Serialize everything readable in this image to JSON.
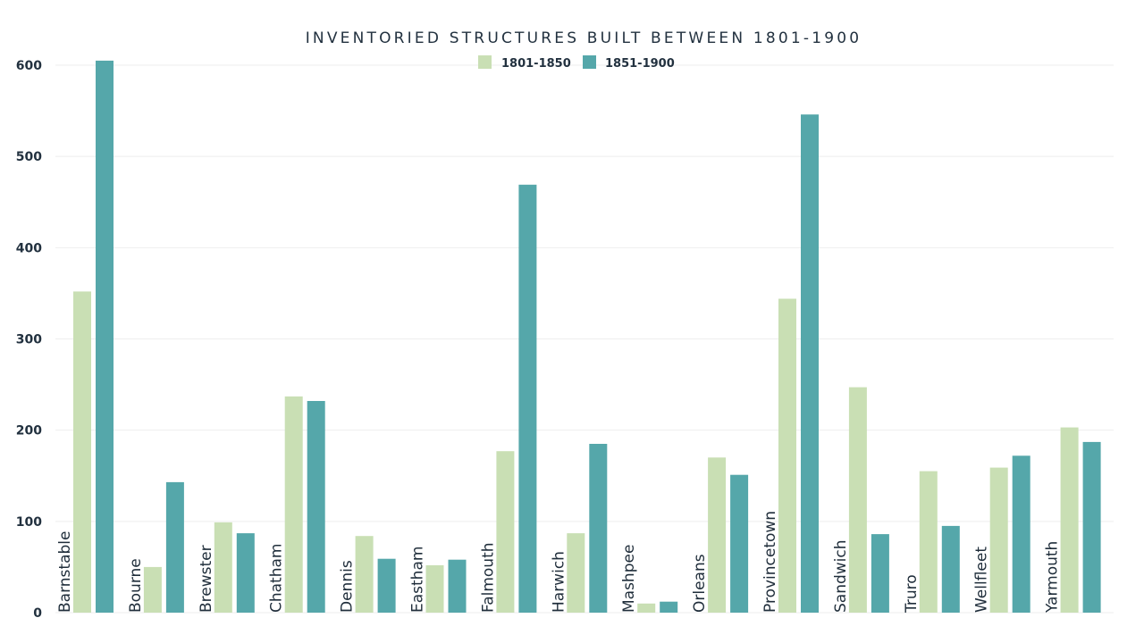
{
  "chart_data": {
    "type": "bar",
    "title": "INVENTORIED STRUCTURES BUILT BETWEEN 1801-1900",
    "xlabel": "",
    "ylabel": "",
    "ylim": [
      0,
      600
    ],
    "yticks": [
      "0",
      "100",
      "200",
      "300",
      "400",
      "500",
      "600"
    ],
    "grid": true,
    "legend_position": "top-center",
    "categories": [
      "Barnstable",
      "Bourne",
      "Brewster",
      "Chatham",
      "Dennis",
      "Eastham",
      "Falmouth",
      "Harwich",
      "Mashpee",
      "Orleans",
      "Provincetown",
      "Sandwich",
      "Truro",
      "Wellfleet",
      "Yarmouth"
    ],
    "series": [
      {
        "name": "1801-1850",
        "color": "#c9dfb4",
        "values": [
          352,
          50,
          99,
          237,
          84,
          52,
          177,
          87,
          10,
          170,
          344,
          247,
          155,
          159,
          203
        ]
      },
      {
        "name": "1851-1900",
        "color": "#55a7aa",
        "values": [
          605,
          143,
          87,
          232,
          59,
          58,
          469,
          185,
          12,
          151,
          546,
          86,
          95,
          172,
          187
        ]
      }
    ]
  }
}
